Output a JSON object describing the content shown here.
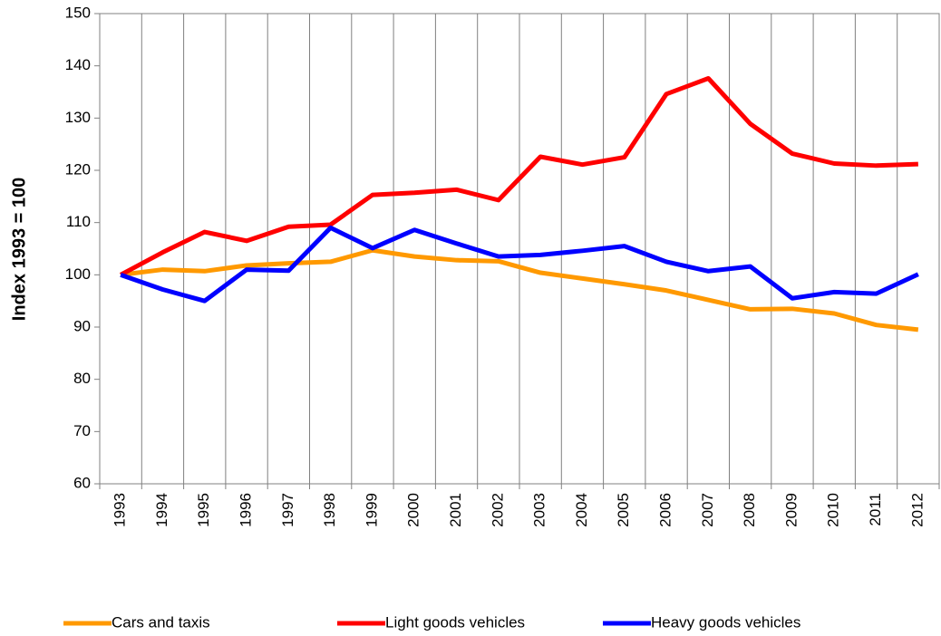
{
  "chart_data": {
    "type": "line",
    "y_label": "Index 1993 = 100",
    "categories": [
      "1993",
      "1994",
      "1995",
      "1996",
      "1997",
      "1998",
      "1999",
      "2000",
      "2001",
      "2002",
      "2003",
      "2004",
      "2005",
      "2006",
      "2007",
      "2008",
      "2009",
      "2010",
      "2011",
      "2012"
    ],
    "series": [
      {
        "name": "Cars and taxis",
        "color": "#ff9900",
        "values": [
          100,
          101,
          100.7,
          101.8,
          102.2,
          102.5,
          104.7,
          103.5,
          102.8,
          102.6,
          100.4,
          99.3,
          98.2,
          97,
          95.2,
          93.4,
          93.5,
          92.6,
          90.4,
          89.5
        ]
      },
      {
        "name": "Light goods vehicles",
        "color": "#ff0000",
        "values": [
          100,
          104.3,
          108.2,
          106.5,
          109.2,
          109.6,
          115.3,
          115.7,
          116.3,
          114.3,
          122.6,
          121.1,
          122.5,
          134.6,
          137.6,
          128.9,
          123.2,
          121.3,
          120.9,
          121.2
        ]
      },
      {
        "name": "Heavy goods vehicles",
        "color": "#0000ff",
        "values": [
          100,
          97.2,
          95,
          101,
          100.8,
          109,
          105.1,
          108.6,
          106,
          103.5,
          103.8,
          104.6,
          105.5,
          102.5,
          100.7,
          101.6,
          95.5,
          96.7,
          96.4,
          100.1
        ]
      }
    ],
    "ylim": [
      60,
      150
    ],
    "yticks": [
      60,
      70,
      80,
      90,
      100,
      110,
      120,
      130,
      140,
      150
    ],
    "grid": true,
    "legend": "bottom"
  }
}
